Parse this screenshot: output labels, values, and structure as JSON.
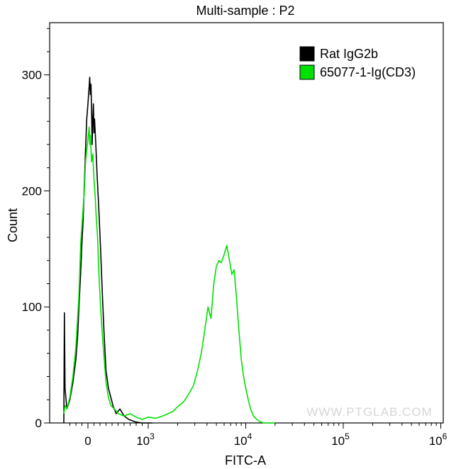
{
  "chart_data": {
    "type": "line",
    "title": "Multi-sample : P2",
    "xlabel": "FITC-A",
    "ylabel": "Count",
    "x_scale": "biexponential",
    "xlim": [
      -400,
      1000000
    ],
    "ylim": [
      0,
      345
    ],
    "y_ticks": [
      0,
      100,
      200,
      300
    ],
    "x_ticks": [
      {
        "value": 0,
        "base": "0",
        "exp": ""
      },
      {
        "value": 1000,
        "base": "10",
        "exp": "3"
      },
      {
        "value": 10000,
        "base": "10",
        "exp": "4"
      },
      {
        "value": 100000,
        "base": "10",
        "exp": "5"
      },
      {
        "value": 1000000,
        "base": "10",
        "exp": "6"
      }
    ],
    "grid": false,
    "legend_position": "top-right",
    "series": [
      {
        "name": "Rat IgG2b",
        "color": "#000000",
        "points": [
          [
            -400,
            0
          ],
          [
            -390,
            95
          ],
          [
            -380,
            30
          ],
          [
            -350,
            12
          ],
          [
            -300,
            20
          ],
          [
            -250,
            35
          ],
          [
            -200,
            55
          ],
          [
            -170,
            75
          ],
          [
            -150,
            100
          ],
          [
            -120,
            130
          ],
          [
            -100,
            155
          ],
          [
            -80,
            175
          ],
          [
            -60,
            205
          ],
          [
            -40,
            235
          ],
          [
            -20,
            262
          ],
          [
            0,
            275
          ],
          [
            20,
            290
          ],
          [
            30,
            298
          ],
          [
            40,
            283
          ],
          [
            50,
            292
          ],
          [
            60,
            270
          ],
          [
            70,
            240
          ],
          [
            80,
            262
          ],
          [
            90,
            275
          ],
          [
            100,
            250
          ],
          [
            110,
            262
          ],
          [
            130,
            240
          ],
          [
            150,
            215
          ],
          [
            180,
            185
          ],
          [
            210,
            150
          ],
          [
            240,
            110
          ],
          [
            270,
            75
          ],
          [
            300,
            45
          ],
          [
            340,
            30
          ],
          [
            380,
            22
          ],
          [
            420,
            14
          ],
          [
            470,
            8
          ],
          [
            530,
            12
          ],
          [
            600,
            6
          ],
          [
            680,
            3
          ],
          [
            780,
            1
          ],
          [
            900,
            0
          ],
          [
            1100,
            0
          ]
        ]
      },
      {
        "name": "65077-1-Ig(CD3)",
        "color": "#00e000",
        "points": [
          [
            -400,
            8
          ],
          [
            -380,
            15
          ],
          [
            -350,
            12
          ],
          [
            -300,
            22
          ],
          [
            -250,
            40
          ],
          [
            -200,
            65
          ],
          [
            -150,
            110
          ],
          [
            -120,
            155
          ],
          [
            -100,
            170
          ],
          [
            -80,
            185
          ],
          [
            -60,
            200
          ],
          [
            -40,
            225
          ],
          [
            -20,
            235
          ],
          [
            0,
            245
          ],
          [
            20,
            255
          ],
          [
            30,
            240
          ],
          [
            40,
            248
          ],
          [
            60,
            225
          ],
          [
            80,
            232
          ],
          [
            100,
            210
          ],
          [
            120,
            195
          ],
          [
            140,
            175
          ],
          [
            160,
            160
          ],
          [
            180,
            130
          ],
          [
            210,
            100
          ],
          [
            240,
            75
          ],
          [
            270,
            55
          ],
          [
            300,
            35
          ],
          [
            340,
            22
          ],
          [
            380,
            15
          ],
          [
            440,
            12
          ],
          [
            500,
            8
          ],
          [
            600,
            6
          ],
          [
            700,
            8
          ],
          [
            800,
            5
          ],
          [
            900,
            3
          ],
          [
            1000,
            5
          ],
          [
            1200,
            4
          ],
          [
            1400,
            6
          ],
          [
            1600,
            8
          ],
          [
            1800,
            10
          ],
          [
            2000,
            14
          ],
          [
            2300,
            18
          ],
          [
            2600,
            25
          ],
          [
            2900,
            32
          ],
          [
            3200,
            45
          ],
          [
            3500,
            60
          ],
          [
            3800,
            80
          ],
          [
            4100,
            100
          ],
          [
            4400,
            90
          ],
          [
            4700,
            120
          ],
          [
            5000,
            135
          ],
          [
            5300,
            140
          ],
          [
            5600,
            138
          ],
          [
            6000,
            145
          ],
          [
            6400,
            153
          ],
          [
            6800,
            140
          ],
          [
            7200,
            128
          ],
          [
            7600,
            132
          ],
          [
            8000,
            110
          ],
          [
            8500,
            80
          ],
          [
            9000,
            55
          ],
          [
            9500,
            40
          ],
          [
            10000,
            30
          ],
          [
            10600,
            20
          ],
          [
            11200,
            12
          ],
          [
            12000,
            6
          ],
          [
            13000,
            3
          ],
          [
            14000,
            1
          ],
          [
            15500,
            0
          ],
          [
            20000,
            0
          ]
        ]
      }
    ],
    "watermark": "WWW.PTGLAB.COM"
  }
}
